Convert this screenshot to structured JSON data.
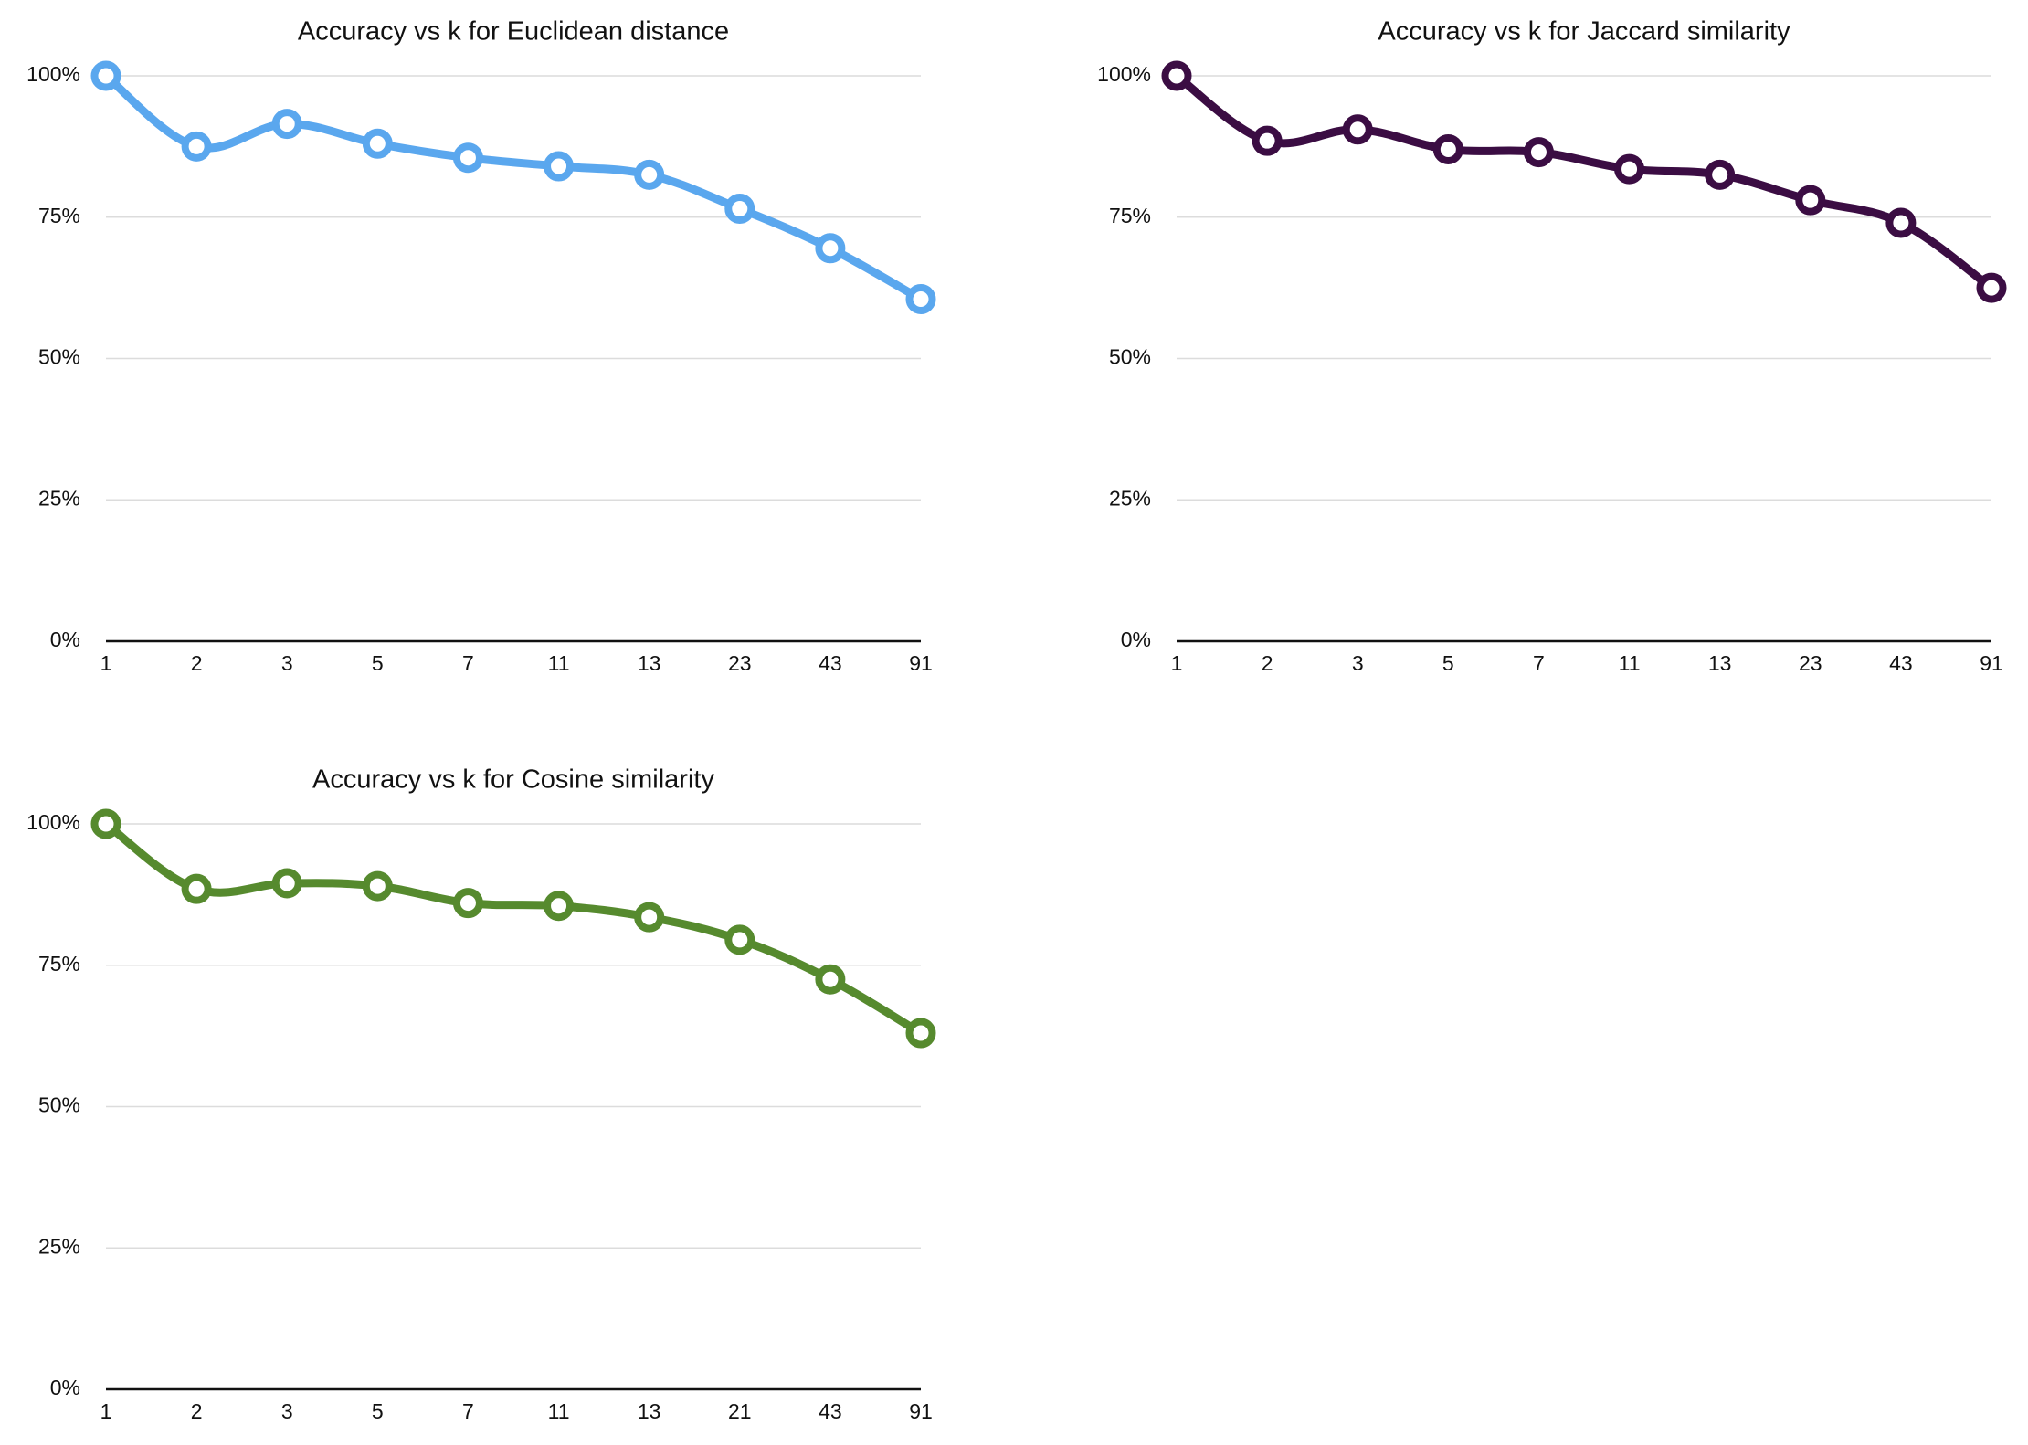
{
  "chart_data": [
    {
      "type": "line",
      "title": "Accuracy vs k for Euclidean distance",
      "xlabel": "",
      "ylabel": "",
      "categories": [
        "1",
        "2",
        "3",
        "5",
        "7",
        "11",
        "13",
        "23",
        "43",
        "91"
      ],
      "series": [
        {
          "values": [
            100,
            87.5,
            91.5,
            88,
            85.5,
            84,
            82.5,
            76.5,
            69.5,
            60.5
          ],
          "color": "#5aa7ee"
        }
      ],
      "ylim": [
        0,
        100
      ],
      "yticks": [
        "0%",
        "25%",
        "50%",
        "75%",
        "100%"
      ],
      "grid": true,
      "legend": "none"
    },
    {
      "type": "line",
      "title": "Accuracy vs k for Jaccard similarity",
      "xlabel": "",
      "ylabel": "",
      "categories": [
        "1",
        "2",
        "3",
        "5",
        "7",
        "11",
        "13",
        "23",
        "43",
        "91"
      ],
      "series": [
        {
          "values": [
            100,
            88.5,
            90.5,
            87,
            86.5,
            83.5,
            82.5,
            78,
            74,
            62.5
          ],
          "color": "#3b0d43"
        }
      ],
      "ylim": [
        0,
        100
      ],
      "yticks": [
        "0%",
        "25%",
        "50%",
        "75%",
        "100%"
      ],
      "grid": true,
      "legend": "none"
    },
    {
      "type": "line",
      "title": "Accuracy vs k for Cosine similarity",
      "xlabel": "",
      "ylabel": "",
      "categories": [
        "1",
        "2",
        "3",
        "5",
        "7",
        "11",
        "13",
        "21",
        "43",
        "91"
      ],
      "series": [
        {
          "values": [
            100,
            88.5,
            89.5,
            89,
            86,
            85.5,
            83.5,
            79.5,
            72.5,
            63
          ],
          "color": "#568a2e"
        }
      ],
      "ylim": [
        0,
        100
      ],
      "yticks": [
        "0%",
        "25%",
        "50%",
        "75%",
        "100%"
      ],
      "grid": true,
      "legend": "none"
    }
  ]
}
